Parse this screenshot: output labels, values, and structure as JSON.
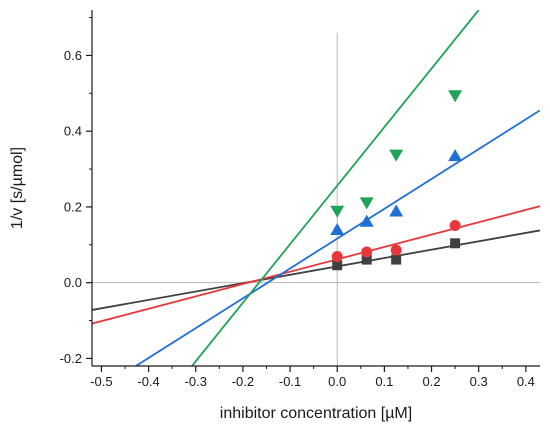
{
  "chart_data": {
    "type": "scatter",
    "xlabel": "inhibitor concentration [µM]",
    "ylabel": "1/v [s/µmol]",
    "xlim": [
      -0.52,
      0.43
    ],
    "ylim": [
      -0.22,
      0.72
    ],
    "x_ticks": [
      -0.5,
      -0.4,
      -0.3,
      -0.2,
      -0.1,
      0.0,
      0.1,
      0.2,
      0.3,
      0.4
    ],
    "x_tick_labels": [
      "-0.5",
      "-0.4",
      "-0.3",
      "-0.2",
      "-0.1",
      "0.0",
      "0.1",
      "0.2",
      "0.3",
      "0.4"
    ],
    "y_ticks": [
      -0.2,
      0.0,
      0.2,
      0.4,
      0.6
    ],
    "y_tick_labels": [
      "-0.2",
      "0.0",
      "0.2",
      "0.4",
      "0.6"
    ],
    "reference_lines": {
      "x": 0.0,
      "y": 0.0
    },
    "grid": false,
    "legend": "none",
    "series": [
      {
        "marker": "square",
        "color": "#404040",
        "x": [
          0.0,
          0.0625,
          0.125,
          0.25
        ],
        "y": [
          0.046,
          0.061,
          0.061,
          0.104
        ],
        "fit_line": {
          "x": [
            -0.52,
            0.43
          ],
          "y": [
            -0.072,
            0.138
          ]
        }
      },
      {
        "marker": "circle",
        "color": "#e8383b",
        "x": [
          0.0,
          0.0625,
          0.125,
          0.25
        ],
        "y": [
          0.069,
          0.081,
          0.086,
          0.151
        ],
        "fit_line": {
          "x": [
            -0.52,
            0.43
          ],
          "y": [
            -0.108,
            0.202
          ]
        }
      },
      {
        "marker": "triangle-up",
        "color": "#1f6fd6",
        "x": [
          0.0,
          0.0625,
          0.125,
          0.25
        ],
        "y": [
          0.139,
          0.161,
          0.188,
          0.334
        ],
        "fit_line": {
          "x": [
            -0.427,
            0.43
          ],
          "y": [
            -0.22,
            0.455
          ]
        }
      },
      {
        "marker": "triangle-down",
        "color": "#1fa35a",
        "x": [
          0.0,
          0.0625,
          0.125,
          0.25
        ],
        "y": [
          0.19,
          0.212,
          0.338,
          0.495
        ],
        "fit_line": {
          "x": [
            -0.308,
            0.3
          ],
          "y": [
            -0.22,
            0.72
          ]
        }
      }
    ]
  }
}
